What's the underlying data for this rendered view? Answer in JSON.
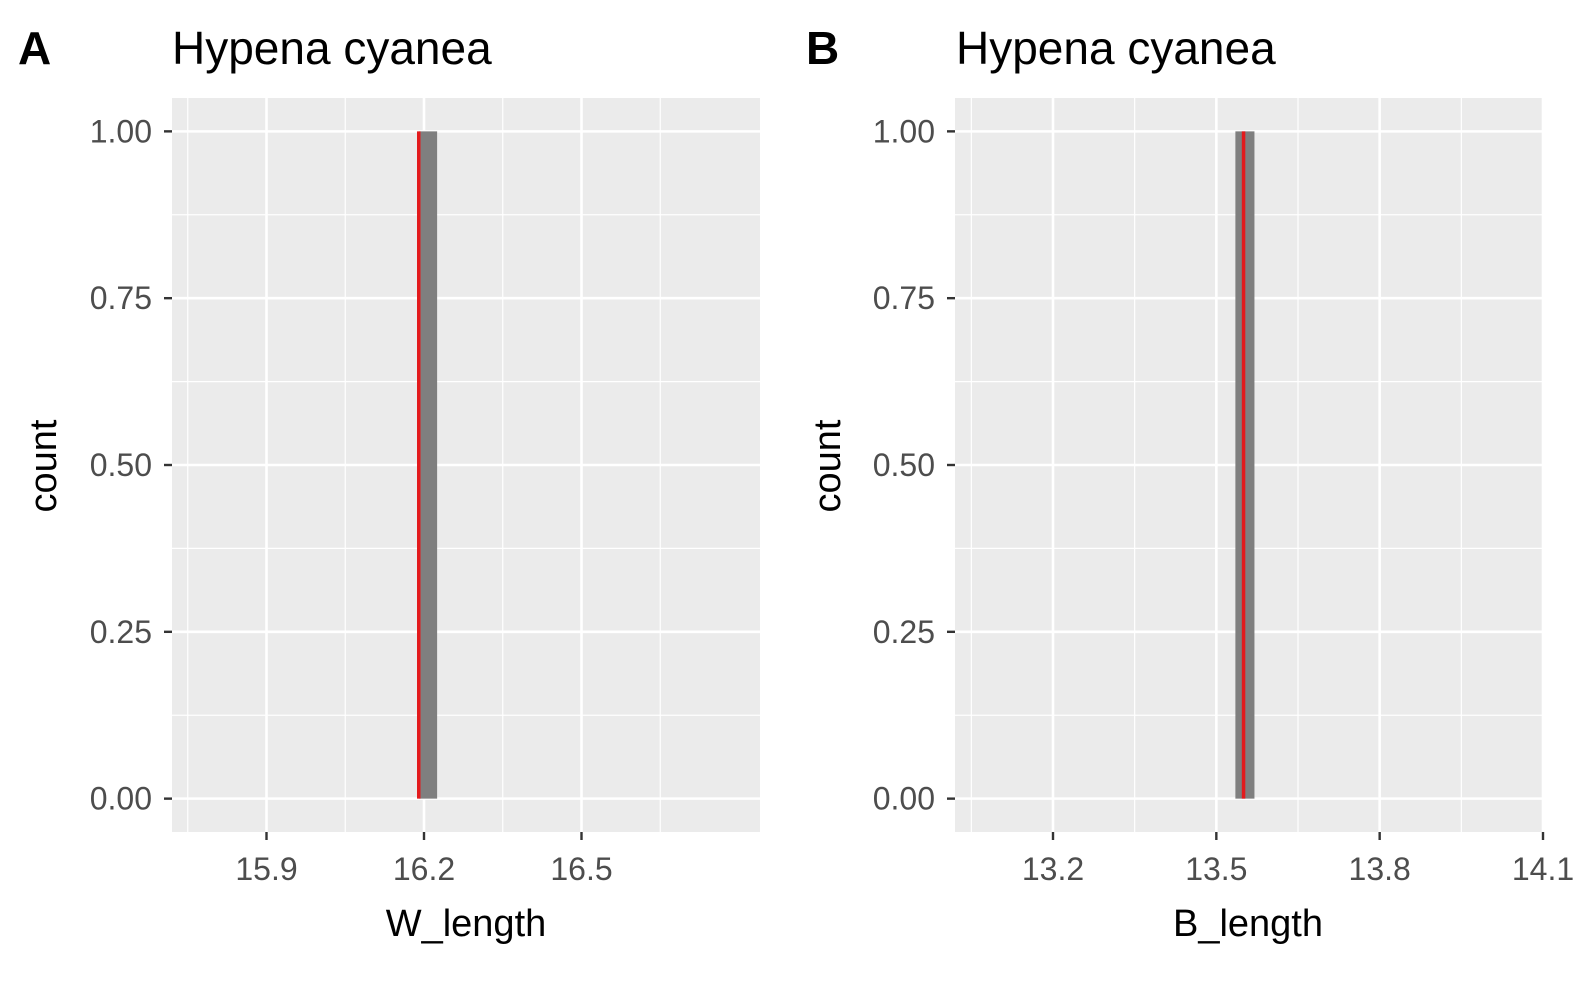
{
  "chart_data": [
    {
      "type": "bar",
      "panel_label": "A",
      "title": "Hypena cyanea",
      "xlabel": "W_length",
      "ylabel": "count",
      "xlim": [
        15.72,
        16.84
      ],
      "ylim": [
        -0.05,
        1.05
      ],
      "x_ticks": [
        {
          "value": 15.9,
          "label": "15.9"
        },
        {
          "value": 16.2,
          "label": "16.2"
        },
        {
          "value": 16.5,
          "label": "16.5"
        }
      ],
      "y_ticks": [
        {
          "value": 0,
          "label": "0.00"
        },
        {
          "value": 0.25,
          "label": "0.25"
        },
        {
          "value": 0.5,
          "label": "0.50"
        },
        {
          "value": 0.75,
          "label": "0.75"
        },
        {
          "value": 1,
          "label": "1.00"
        }
      ],
      "bars": [
        {
          "x0": 16.19,
          "x1": 16.225,
          "count": 1
        }
      ],
      "vline": {
        "x": 16.19,
        "color": "#e31a1c"
      },
      "bar_color": "#7f7f7f",
      "grid": true,
      "panel_bg": "#ebebeb"
    },
    {
      "type": "bar",
      "panel_label": "B",
      "title": "Hypena cyanea",
      "xlabel": "B_length",
      "ylabel": "count",
      "xlim": [
        13.02,
        14.1
      ],
      "ylim": [
        -0.05,
        1.05
      ],
      "x_ticks": [
        {
          "value": 13.2,
          "label": "13.2"
        },
        {
          "value": 13.5,
          "label": "13.5"
        },
        {
          "value": 13.8,
          "label": "13.8"
        },
        {
          "value": 14.1,
          "label": "14.1"
        }
      ],
      "y_ticks": [
        {
          "value": 0,
          "label": "0.00"
        },
        {
          "value": 0.25,
          "label": "0.25"
        },
        {
          "value": 0.5,
          "label": "0.50"
        },
        {
          "value": 0.75,
          "label": "0.75"
        },
        {
          "value": 1,
          "label": "1.00"
        }
      ],
      "bars": [
        {
          "x0": 13.535,
          "x1": 13.57,
          "count": 1
        }
      ],
      "vline": {
        "x": 13.55,
        "color": "#e31a1c"
      },
      "bar_color": "#7f7f7f",
      "grid": true,
      "panel_bg": "#ebebeb"
    }
  ]
}
